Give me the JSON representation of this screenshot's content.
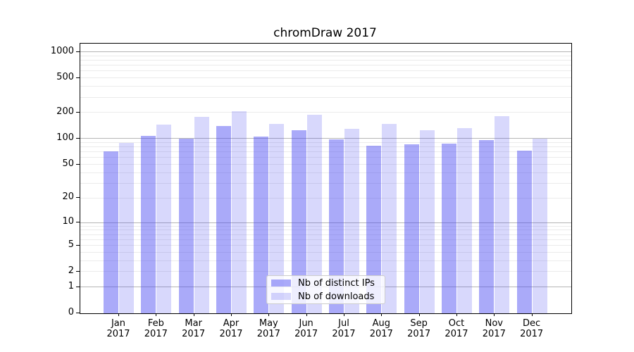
{
  "chart_data": {
    "type": "bar",
    "title": "chromDraw 2017",
    "categories": [
      "Jan 2017",
      "Feb 2017",
      "Mar 2017",
      "Apr 2017",
      "May 2017",
      "Jun 2017",
      "Jul 2017",
      "Aug 2017",
      "Sep 2017",
      "Oct 2017",
      "Nov 2017",
      "Dec 2017"
    ],
    "series": [
      {
        "name": "Nb of distinct IPs",
        "color": "#4646f3",
        "alpha": 0.46,
        "values": [
          71,
          107,
          100,
          141,
          106,
          125,
          98,
          82,
          86,
          87,
          97,
          73
        ]
      },
      {
        "name": "Nb of downloads",
        "color": "#4646f3",
        "alpha": 0.21,
        "values": [
          90,
          146,
          180,
          206,
          147,
          189,
          129,
          148,
          124,
          132,
          183,
          100
        ]
      }
    ],
    "xlabel": "",
    "ylabel": "",
    "yscale": "log1p",
    "ylim": [
      0,
      1240
    ],
    "yticks": [
      0,
      1,
      2,
      5,
      10,
      20,
      50,
      100,
      200,
      500,
      1000
    ],
    "grid": {
      "major_values": [
        1,
        10,
        100,
        1000
      ],
      "minor_values": [
        2,
        3,
        4,
        5,
        6,
        7,
        8,
        9,
        20,
        30,
        40,
        50,
        60,
        70,
        80,
        90,
        200,
        300,
        400,
        500,
        600,
        700,
        800,
        900
      ],
      "major_color": "#b5b5b5",
      "minor_color": "#ebebeb"
    },
    "legend_loc": "lower center",
    "spine_color": "#000000",
    "background_color": "#ffffff"
  }
}
